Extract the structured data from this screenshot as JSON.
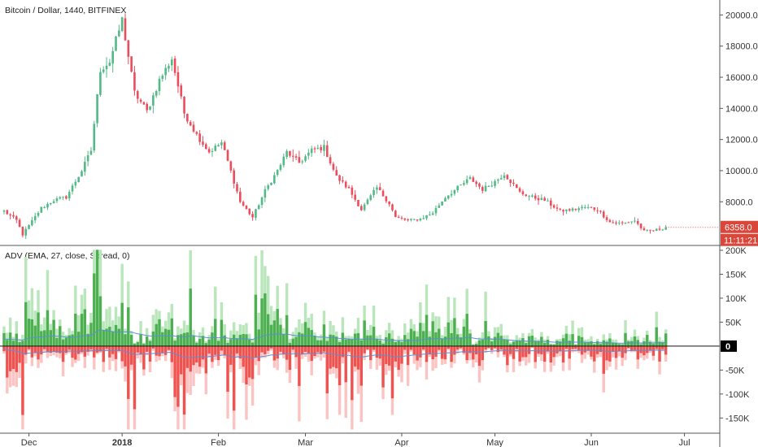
{
  "chart_data": [
    {
      "type": "candlestick",
      "title": "Bitcoin / Dollar, 1440, BITFINEX",
      "y_ticks": [
        8000,
        10000,
        12000,
        14000,
        16000,
        18000,
        20000
      ],
      "y_tick_labels": [
        "8000.0",
        "10000.0",
        "12000.0",
        "14000.0",
        "16000.0",
        "18000.0",
        "20000.0"
      ],
      "ylim": [
        5300,
        20700
      ],
      "x_tick_labels": [
        "Dec",
        "2018",
        "Feb",
        "Mar",
        "Apr",
        "May",
        "Jun",
        "Jul"
      ],
      "x_tick_days": [
        8,
        38,
        69,
        97,
        128,
        158,
        189,
        219
      ],
      "last_price_label": "6358.0",
      "countdown_label": "11:11:21",
      "anchors": [
        [
          0,
          7400
        ],
        [
          4,
          6800
        ],
        [
          6,
          5900
        ],
        [
          12,
          7600
        ],
        [
          16,
          8100
        ],
        [
          20,
          8300
        ],
        [
          25,
          10000
        ],
        [
          28,
          11300
        ],
        [
          31,
          16500
        ],
        [
          34,
          17000
        ],
        [
          38,
          19700
        ],
        [
          42,
          15000
        ],
        [
          46,
          13800
        ],
        [
          50,
          15800
        ],
        [
          54,
          17200
        ],
        [
          58,
          13700
        ],
        [
          62,
          12300
        ],
        [
          66,
          11200
        ],
        [
          70,
          11800
        ],
        [
          72,
          10600
        ],
        [
          76,
          8000
        ],
        [
          80,
          7000
        ],
        [
          84,
          8700
        ],
        [
          88,
          10000
        ],
        [
          91,
          11200
        ],
        [
          95,
          10500
        ],
        [
          99,
          11300
        ],
        [
          103,
          11500
        ],
        [
          107,
          9600
        ],
        [
          111,
          8800
        ],
        [
          115,
          7500
        ],
        [
          120,
          8900
        ],
        [
          124,
          7900
        ],
        [
          126,
          7000
        ],
        [
          130,
          6800
        ],
        [
          134,
          6900
        ],
        [
          138,
          7300
        ],
        [
          142,
          8300
        ],
        [
          146,
          8900
        ],
        [
          150,
          9500
        ],
        [
          154,
          8800
        ],
        [
          158,
          9300
        ],
        [
          161,
          9800
        ],
        [
          166,
          8600
        ],
        [
          170,
          8300
        ],
        [
          174,
          8100
        ],
        [
          179,
          7400
        ],
        [
          183,
          7500
        ],
        [
          187,
          7650
        ],
        [
          191,
          7500
        ],
        [
          195,
          6700
        ],
        [
          199,
          6600
        ],
        [
          203,
          6800
        ],
        [
          206,
          6100
        ],
        [
          210,
          6200
        ],
        [
          213,
          6358
        ]
      ]
    },
    {
      "type": "bar",
      "title": "ADV (EMA, 27, close, Spread, 0)",
      "y_ticks": [
        -150000,
        -100000,
        -50000,
        0,
        50000,
        100000,
        150000,
        200000
      ],
      "y_tick_labels": [
        "-150K",
        "-100K",
        "-50K",
        "0",
        "50K",
        "100K",
        "150K",
        "200K"
      ],
      "ylim": [
        -180000,
        205000
      ],
      "zero_label": "0",
      "series": [
        {
          "name": "advancing",
          "color": "#4caf50",
          "light_color": "#b9e6ba"
        },
        {
          "name": "declining",
          "color": "#ef5350",
          "light_color": "#fbc4c3"
        },
        {
          "name": "EMA",
          "color": "#5b8fd6"
        }
      ],
      "peaks": [
        [
          60,
          200000
        ],
        [
          40,
          135000
        ],
        [
          30,
          125000
        ],
        [
          -180,
          -170000
        ],
        [
          -160,
          -160000
        ],
        [
          -115,
          -140000
        ],
        [
          -95,
          -125000
        ],
        [
          -200,
          -100000
        ]
      ]
    }
  ]
}
